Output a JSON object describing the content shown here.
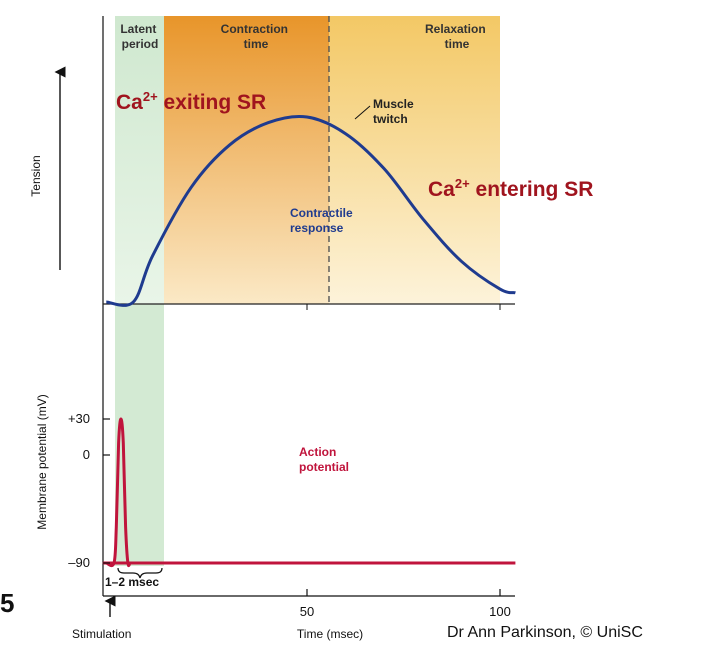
{
  "chart_data": [
    {
      "type": "line",
      "panel": "top",
      "ylabel": "Tension",
      "phases": [
        {
          "name": "Latent period",
          "label_lines": [
            "Latent",
            "period"
          ],
          "start": 0,
          "end": 5,
          "color": "#dcefd9"
        },
        {
          "name": "Contraction time",
          "label_lines": [
            "Contraction",
            "time"
          ],
          "start": 5,
          "end": 50,
          "color": "#e8992e"
        },
        {
          "name": "Relaxation time",
          "label_lines": [
            "Relaxation",
            "time"
          ],
          "start": 50,
          "end": 100,
          "color": "#f4cc6e"
        }
      ],
      "series": [
        {
          "name": "Muscle twitch",
          "color": "#1f3b8f",
          "x": [
            -2,
            5,
            10,
            20,
            30,
            40,
            50,
            60,
            70,
            80,
            90,
            100,
            104
          ],
          "y": [
            0,
            0,
            0.25,
            0.62,
            0.85,
            0.97,
            1.0,
            0.91,
            0.72,
            0.45,
            0.22,
            0.07,
            0.05
          ]
        }
      ],
      "annotations": {
        "peak_label_lines": [
          "Muscle",
          "twitch"
        ],
        "curve_label_lines": [
          "Contractile",
          "response"
        ],
        "ca_exit": {
          "main": "Ca",
          "superscript": "2+",
          "rest": " exiting SR"
        },
        "ca_enter": {
          "main": "Ca",
          "superscript": "2+",
          "rest": " entering SR"
        }
      },
      "peak_x": 50
    },
    {
      "type": "line",
      "panel": "bottom",
      "ylabel": "Membrane potential (mV)",
      "yticks": [
        -90,
        0,
        30
      ],
      "ytick_labels": [
        "–90",
        "0",
        "+30"
      ],
      "xticks": [
        50,
        100
      ],
      "xtick_labels": [
        "50",
        "100"
      ],
      "xlabel": "Time (msec)",
      "stimulation_label": "Stimulation",
      "duration_label": "1–2 msec",
      "series": [
        {
          "name": "Action potential",
          "label_lines": [
            "Action",
            "potential"
          ],
          "color": "#c0143c",
          "x": [
            -2,
            0,
            0.6,
            1.2,
            1.8,
            2.4,
            3.0,
            3.6,
            4.2,
            5,
            104
          ],
          "y": [
            -90,
            -90,
            -60,
            10,
            30,
            10,
            -60,
            -90,
            -90,
            -90,
            -90
          ]
        }
      ]
    }
  ],
  "credit": "Dr Ann Parkinson, © UniSC",
  "page_number": "5"
}
